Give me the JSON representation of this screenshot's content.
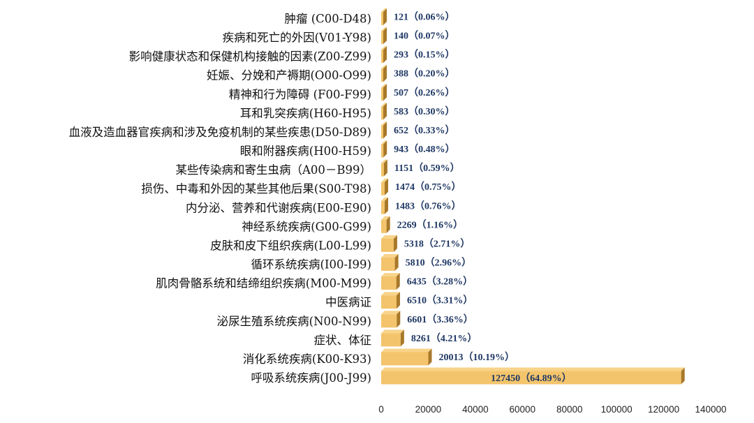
{
  "chart_data": {
    "type": "bar",
    "orientation": "horizontal",
    "bar_style": "3d",
    "bar_color": "#f3c46b",
    "value_label_color": "#1f3864",
    "grid": false,
    "legend": "none",
    "xlim": [
      0,
      140000
    ],
    "x_ticks": [
      0,
      20000,
      40000,
      60000,
      80000,
      100000,
      120000,
      140000
    ],
    "tick_labels": [
      "0",
      "20000",
      "40000",
      "60000",
      "80000",
      "100000",
      "120000",
      "140000"
    ],
    "categories": [
      "肿瘤 (C00-D48)",
      "疾病和死亡的外因(V01-Y98)",
      "影响健康状态和保健机构接触的因素(Z00-Z99)",
      "妊娠、分娩和产褥期(O00-O99)",
      "精神和行为障碍 (F00-F99)",
      "耳和乳突疾病(H60-H95)",
      "血液及造血器官疾病和涉及免疫机制的某些疾患(D50-D89)",
      "眼和附器疾病(H00-H59)",
      "某些传染病和寄生虫病（A00－B99）",
      "损伤、中毒和外因的某些其他后果(S00-T98)",
      "内分泌、营养和代谢疾病(E00-E90)",
      "神经系统疾病(G00-G99)",
      "皮肤和皮下组织疾病(L00-L99)",
      "循环系统疾病(I00-I99)",
      "肌肉骨骼系统和结缔组织疾病(M00-M99)",
      "中医病证",
      "泌尿生殖系统疾病(N00-N99)",
      "症状、体征",
      "消化系统疾病(K00-K93)",
      "呼吸系统疾病(J00-J99)"
    ],
    "values": [
      121,
      140,
      293,
      388,
      507,
      583,
      652,
      943,
      1151,
      1474,
      1483,
      2269,
      5318,
      5810,
      6435,
      6510,
      6601,
      8261,
      20013,
      127450
    ],
    "data_labels": [
      "121（0.06%）",
      "140（0.07%）",
      "293（0.15%）",
      "388（0.20%）",
      "507（0.26%）",
      "583（0.30%）",
      "652（0.33%）",
      "943（0.48%）",
      "1151（0.59%）",
      "1474（0.75%）",
      "1483（0.76%）",
      "2269（1.16%）",
      "5318（2.71%）",
      "5810（2.96%）",
      "6435（3.28%）",
      "6510（3.31%）",
      "6601（3.36%）",
      "8261（4.21%）",
      "20013（10.19%）",
      "127450（64.89%）"
    ]
  }
}
